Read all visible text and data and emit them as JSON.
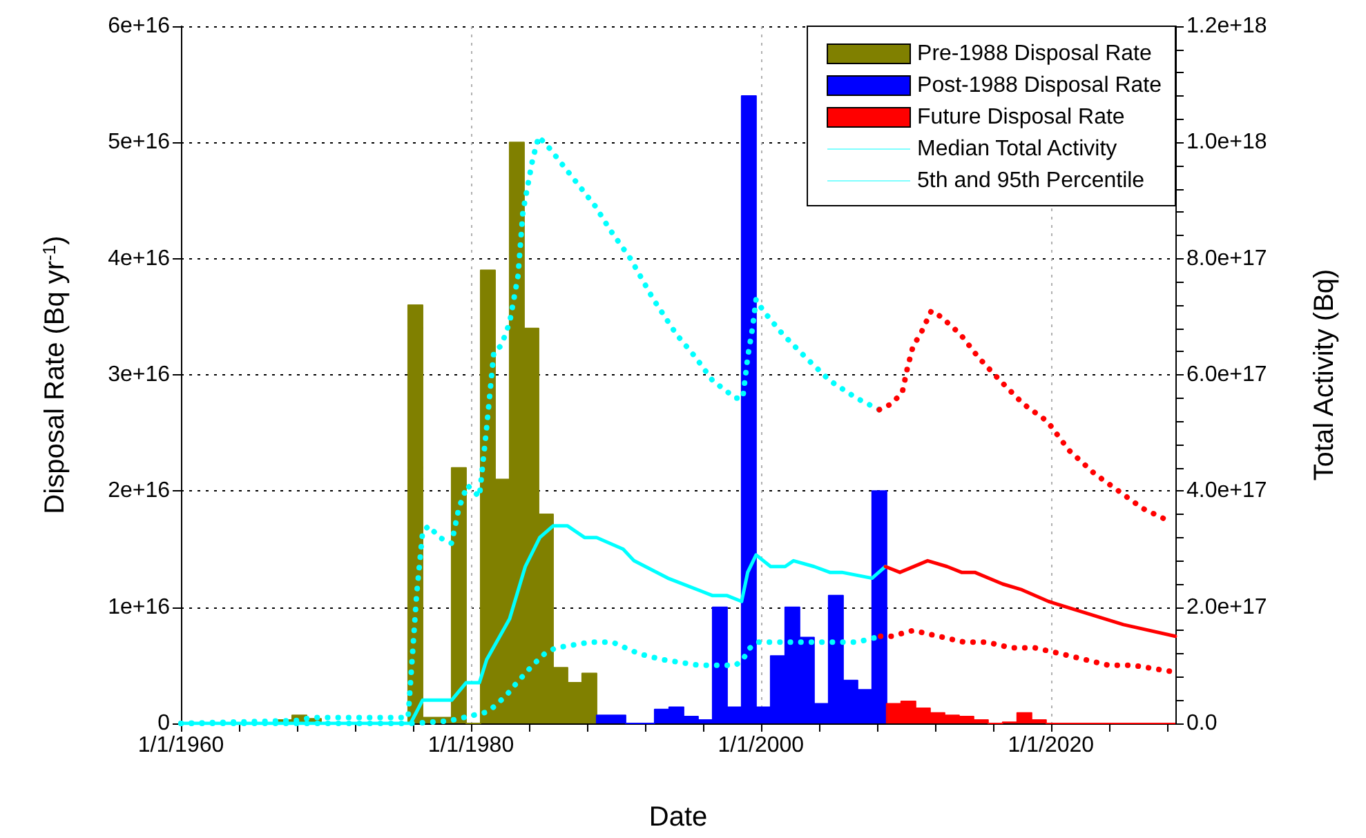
{
  "chart_data": {
    "type": "area",
    "xlabel": "Date",
    "ylabel": "Disposal Rate (Bq yr$^{-1}$)",
    "y2label": "Total Activity (Bq)",
    "xlim": [
      "1960-01-01",
      "2028-08-01"
    ],
    "xticks": [
      {
        "value": "1960-01-01",
        "label": "1/1/1960"
      },
      {
        "value": "1964-01-01",
        "label": null
      },
      {
        "value": "1968-01-01",
        "label": null
      },
      {
        "value": "1972-01-01",
        "label": null
      },
      {
        "value": "1976-01-01",
        "label": null
      },
      {
        "value": "1980-01-01",
        "label": "1/1/1980"
      },
      {
        "value": "1984-01-01",
        "label": null
      },
      {
        "value": "1988-01-01",
        "label": null
      },
      {
        "value": "1992-01-01",
        "label": null
      },
      {
        "value": "1996-01-01",
        "label": null
      },
      {
        "value": "2000-01-01",
        "label": "1/1/2000"
      },
      {
        "value": "2004-01-01",
        "label": null
      },
      {
        "value": "2008-01-01",
        "label": null
      },
      {
        "value": "2012-01-01",
        "label": null
      },
      {
        "value": "2016-01-01",
        "label": null
      },
      {
        "value": "2020-01-01",
        "label": "1/1/2020"
      },
      {
        "value": "2024-01-01",
        "label": null
      },
      {
        "value": "2028-01-01",
        "label": null
      }
    ],
    "ylim": [
      0,
      6e+16
    ],
    "yticks": [
      0,
      {
        "value": 1e+16,
        "label": "1e+16"
      },
      {
        "value": 2e+16,
        "label": "2e+16"
      },
      {
        "value": 3e+16,
        "label": "3e+16"
      },
      {
        "value": 4e+16,
        "label": "4e+16"
      },
      {
        "value": 5e+16,
        "label": "5e+16"
      },
      {
        "value": 6e+16,
        "label": "6e+16"
      }
    ],
    "y2lim": [
      0,
      1.2e+18
    ],
    "y2ticks": [
      {
        "value": 0,
        "label": "0.0"
      },
      {
        "value": 4e+16,
        "label": null
      },
      {
        "value": 8e+16,
        "label": null
      },
      {
        "value": 1.2e+17,
        "label": null
      },
      {
        "value": 1.6e+17,
        "label": null
      },
      {
        "value": 2e+17,
        "label": "2.0e+17"
      },
      {
        "value": 2.4e+17,
        "label": null
      },
      {
        "value": 2.8e+17,
        "label": null
      },
      {
        "value": 3.2e+17,
        "label": null
      },
      {
        "value": 3.6e+17,
        "label": null
      },
      {
        "value": 4e+17,
        "label": "4.0e+17"
      },
      {
        "value": 4.4e+17,
        "label": null
      },
      {
        "value": 4.8e+17,
        "label": null
      },
      {
        "value": 5.2e+17,
        "label": null
      },
      {
        "value": 5.6e+17,
        "label": null
      },
      {
        "value": 6e+17,
        "label": "6.0e+17"
      },
      {
        "value": 6.4e+17,
        "label": null
      },
      {
        "value": 6.8e+17,
        "label": null
      },
      {
        "value": 7.2e+17,
        "label": null
      },
      {
        "value": 7.6e+17,
        "label": null
      },
      {
        "value": 8e+17,
        "label": "8.0e+17"
      },
      {
        "value": 8.4e+17,
        "label": null
      },
      {
        "value": 8.8e+17,
        "label": null
      },
      {
        "value": 9.2e+17,
        "label": null
      },
      {
        "value": 9.6e+17,
        "label": null
      },
      {
        "value": 1e+18,
        "label": "1.0e+18"
      },
      {
        "value": 1.04e+18,
        "label": null
      },
      {
        "value": 1.08e+18,
        "label": null
      },
      {
        "value": 1.12e+18,
        "label": null
      },
      {
        "value": 1.16e+18,
        "label": null
      },
      {
        "value": 1.2e+18,
        "label": "1.2e+18"
      }
    ],
    "grid": true,
    "legend": "top right",
    "marker": "none",
    "series": [
      {
        "name": "Pre-1988 Disposal Rate",
        "color": "#808000",
        "x": [
          "1960-01",
          "1966-09",
          "1966-09",
          "1967-09",
          "1967-09",
          "1968-09",
          "1968-09",
          "1969-09",
          "1969-09",
          "1975-09",
          "1975-09",
          "1976-09",
          "1976-09",
          "1978-09",
          "1978-09",
          "1979-09",
          "1979-09",
          "1980-09",
          "1980-09",
          "1981-09",
          "1981-09",
          "1982-09",
          "1982-09",
          "1983-09",
          "1983-09",
          "1984-09",
          "1984-09",
          "1985-09",
          "1985-09",
          "1986-09",
          "1986-09",
          "1987-09",
          "1987-09",
          "1988-09",
          "1988-09"
        ],
        "values": [
          0,
          0,
          300000000000000.0,
          300000000000000.0,
          700000000000000.0,
          700000000000000.0,
          400000000000000.0,
          400000000000000.0,
          0,
          0,
          3.6e+16,
          3.6e+16,
          500000000000000.0,
          500000000000000.0,
          2.2e+16,
          2.2e+16,
          0,
          0,
          3.9e+16,
          3.9e+16,
          2.1e+16,
          2.1e+16,
          5e+16,
          5e+16,
          3.4e+16,
          3.4e+16,
          1.8e+16,
          1.8e+16,
          4800000000000000.0,
          4800000000000000.0,
          3500000000000000.0,
          3500000000000000.0,
          4300000000000000.0,
          4300000000000000.0,
          0
        ]
      },
      {
        "name": "Post-1988 Disposal Rate",
        "color": "#0000ff",
        "x": [
          "1988-09",
          "1988-09",
          "1990-09",
          "1990-09",
          "1992-09",
          "1992-09",
          "1993-09",
          "1993-09",
          "1994-09",
          "1994-09",
          "1995-09",
          "1995-09",
          "1996-09",
          "1996-09",
          "1997-09",
          "1997-09",
          "1998-09",
          "1998-09",
          "1999-09",
          "1999-09",
          "2000-09",
          "2000-09",
          "2001-09",
          "2001-09",
          "2002-09",
          "2002-09",
          "2003-09",
          "2003-09",
          "2004-09",
          "2004-09",
          "2005-09",
          "2005-09",
          "2006-09",
          "2006-09",
          "2007-09",
          "2007-09",
          "2008-09",
          "2008-09"
        ],
        "values": [
          0,
          700000000000000.0,
          700000000000000.0,
          0,
          0,
          1200000000000000.0,
          1200000000000000.0,
          1400000000000000.0,
          1400000000000000.0,
          600000000000000.0,
          600000000000000.0,
          300000000000000.0,
          300000000000000.0,
          1e+16,
          1e+16,
          1400000000000000.0,
          1400000000000000.0,
          5.4e+16,
          5.4e+16,
          1400000000000000.0,
          1400000000000000.0,
          5800000000000000.0,
          5800000000000000.0,
          1e+16,
          1e+16,
          7400000000000000.0,
          7400000000000000.0,
          1700000000000000.0,
          1700000000000000.0,
          1.1e+16,
          1.1e+16,
          3700000000000000.0,
          3700000000000000.0,
          2900000000000000.0,
          2900000000000000.0,
          2e+16,
          2e+16,
          0
        ]
      },
      {
        "name": "Future Disposal Rate",
        "color": "#ff0000",
        "x": [
          "2008-09",
          "2008-09",
          "2009-09",
          "2009-09",
          "2010-09",
          "2010-09",
          "2011-09",
          "2011-09",
          "2012-09",
          "2012-09",
          "2013-09",
          "2013-09",
          "2014-09",
          "2014-09",
          "2015-09",
          "2015-09",
          "2016-09",
          "2016-09",
          "2017-09",
          "2017-09",
          "2018-09",
          "2018-09",
          "2019-09",
          "2019-09",
          "2028-08"
        ],
        "values": [
          0,
          1700000000000000.0,
          1700000000000000.0,
          1900000000000000.0,
          1900000000000000.0,
          1300000000000000.0,
          1300000000000000.0,
          900000000000000.0,
          900000000000000.0,
          700000000000000.0,
          700000000000000.0,
          600000000000000.0,
          600000000000000.0,
          300000000000000.0,
          300000000000000.0,
          0,
          0,
          100000000000000.0,
          100000000000000.0,
          900000000000000.0,
          900000000000000.0,
          300000000000000.0,
          300000000000000.0,
          0,
          0
        ]
      },
      {
        "name": "Median Total Activity",
        "type": "line",
        "axis": "y2",
        "color": "#00ffff",
        "line_style": "solid",
        "x": [
          "1960-01",
          "1975-11",
          "1976-09",
          "1978-09",
          "1979-09",
          "1980-08",
          "1981-02",
          "1982-09",
          "1983-10",
          "1984-10",
          "1985-09",
          "1986-09",
          "1987-11",
          "1988-09",
          "1990-07",
          "1991-04",
          "1993-08",
          "1996-09",
          "1997-09",
          "1998-09",
          "1999-02",
          "1999-09",
          "2000-09",
          "2001-09",
          "2002-04",
          "2003-09",
          "2004-10",
          "2005-08",
          "2007-09",
          "2008-08"
        ],
        "values": [
          0,
          0,
          4e+16,
          4e+16,
          7e+16,
          7e+16,
          1.1e+17,
          1.8e+17,
          2.7e+17,
          3.2e+17,
          3.4e+17,
          3.4e+17,
          3.2e+17,
          3.2e+17,
          3e+17,
          2.8e+17,
          2.5e+17,
          2.2e+17,
          2.2e+17,
          2.1e+17,
          2.6e+17,
          2.9e+17,
          2.7e+17,
          2.7e+17,
          2.8e+17,
          2.7e+17,
          2.6e+17,
          2.6e+17,
          2.5e+17,
          2.7e+17
        ]
      },
      {
        "type": "line",
        "axis": "y2",
        "color": "#ff0000",
        "line_style": "solid",
        "x": [
          "2008-08",
          "2009-08",
          "2011-07",
          "2012-11",
          "2013-11",
          "2014-10",
          "2016-09",
          "2018-01",
          "2019-11",
          "2022-06",
          "2025-01",
          "2028-08"
        ],
        "values": [
          2.7e+17,
          2.6e+17,
          2.8e+17,
          2.7e+17,
          2.6e+17,
          2.6e+17,
          2.4e+17,
          2.3e+17,
          2.1e+17,
          1.9e+17,
          1.7e+17,
          1.5e+17
        ]
      },
      {
        "name": "5th and 95th Percentile",
        "type": "line",
        "axis": "y2",
        "color": "#00ffff",
        "line_style": "dotted",
        "x": [
          "1960-01",
          "1968-01",
          "1969-01",
          "1975-09",
          "1975-11",
          "1976-04",
          "1976-09",
          "1977-02",
          "1977-11",
          "1978-09",
          "1979-03",
          "1979-10",
          "1980-08",
          "1981-02",
          "1981-08",
          "1982-02",
          "1982-09",
          "1983-04",
          "1983-08",
          "1984-04",
          "1984-09",
          "1985-06",
          "1987-01",
          "1988-08",
          "1989-08",
          "1991-01",
          "1992-08",
          "1994-03",
          "1995-07",
          "1996-09",
          "1998-04",
          "1998-10",
          "1999-02",
          "1999-06",
          "1999-09",
          "2000-03",
          "2001-07",
          "2003-02",
          "2004-10",
          "2006-08",
          "2008-03"
        ],
        "values": [
          0,
          5000000000000000.0,
          1e+16,
          1e+16,
          7e+16,
          2.2e+17,
          3.3e+17,
          3.4e+17,
          3.2e+17,
          3.1e+17,
          3.7e+17,
          4.1e+17,
          3.9e+17,
          5.1e+17,
          6.4e+17,
          6.5e+17,
          6.9e+17,
          7.7e+17,
          8.8e+17,
          9.7e+17,
          1.01e+18,
          9.9e+17,
          9.4e+17,
          8.9e+17,
          8.5e+17,
          8e+17,
          7.3e+17,
          6.7e+17,
          6.3e+17,
          5.9e+17,
          5.6e+17,
          5.6e+17,
          6.3e+17,
          6.8e+17,
          7.3e+17,
          7.1e+17,
          6.7e+17,
          6.3e+17,
          5.9e+17,
          5.6e+17,
          5.4e+17
        ]
      },
      {
        "type": "line",
        "axis": "y2",
        "color": "#00ffff",
        "line_style": "dotted",
        "x": [
          "1960-01",
          "1975-11",
          "1978-06",
          "1980-01",
          "1981-01",
          "1981-09",
          "1982-07",
          "1983-03",
          "1984-04",
          "1985-02",
          "1985-11",
          "1988-04",
          "1989-10",
          "1991-08",
          "1993-03",
          "1995-10",
          "1998-04",
          "1998-10",
          "1999-04",
          "1999-11",
          "2001-08",
          "2003-03",
          "2005-01",
          "2006-09",
          "2008-04"
        ],
        "values": [
          0,
          0,
          4000000000000000.0,
          1.3e+16,
          1.9e+16,
          3e+16,
          5e+16,
          7e+16,
          1e+17,
          1.2e+17,
          1.3e+17,
          1.4e+17,
          1.4e+17,
          1.2e+17,
          1.1e+17,
          1e+17,
          1e+17,
          1.1e+17,
          1.3e+17,
          1.4e+17,
          1.4e+17,
          1.4e+17,
          1.4e+17,
          1.4e+17,
          1.5e+17
        ]
      },
      {
        "type": "line",
        "axis": "y2",
        "color": "#ff0000",
        "line_style": "dotted",
        "x": [
          "2008-03",
          "2009-01",
          "2009-10",
          "2010-02",
          "2010-07",
          "2011-01",
          "2011-10",
          "2012-06",
          "2013-10",
          "2015-01",
          "2016-07",
          "2018-02",
          "2019-10",
          "2021-04",
          "2023-01",
          "2024-09",
          "2026-05",
          "2028-01"
        ],
        "values": [
          5.4e+17,
          5.5e+17,
          5.7e+17,
          6.1e+17,
          6.5e+17,
          6.7e+17,
          7.1e+17,
          7e+17,
          6.7e+17,
          6.3e+17,
          5.9e+17,
          5.5e+17,
          5.2e+17,
          4.7e+17,
          4.3e+17,
          4e+17,
          3.7e+17,
          3.5e+17
        ]
      },
      {
        "type": "line",
        "axis": "y2",
        "color": "#ff0000",
        "line_style": "dotted",
        "x": [
          "2008-04",
          "2009-01",
          "2010-07",
          "2012-04",
          "2014-01",
          "2015-08",
          "2017-04",
          "2018-12",
          "2020-09",
          "2022-05",
          "2024-01",
          "2025-09",
          "2028-03"
        ],
        "values": [
          1.5e+17,
          1.5e+17,
          1.6e+17,
          1.5e+17,
          1.4e+17,
          1.4e+17,
          1.3e+17,
          1.3e+17,
          1.2e+17,
          1.1e+17,
          1e+17,
          1e+17,
          9e+16
        ]
      }
    ]
  }
}
